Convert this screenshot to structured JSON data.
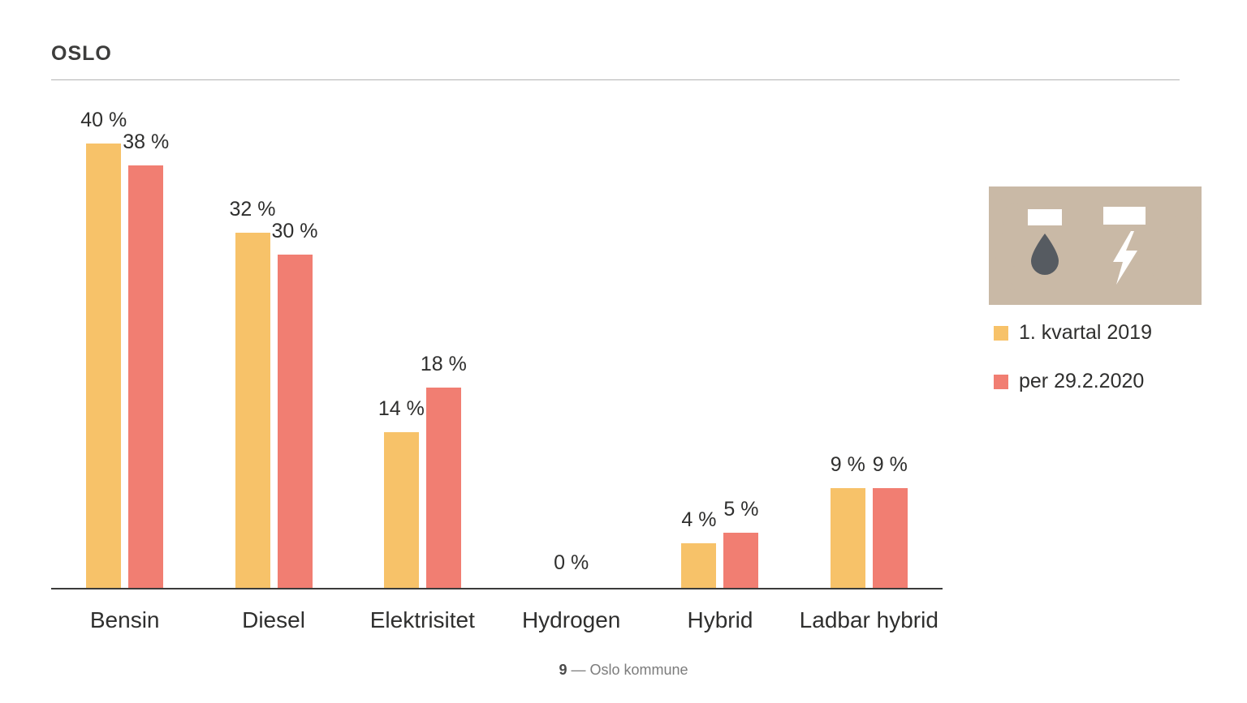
{
  "title": "OSLO",
  "legend": [
    {
      "label": "1. kvartal 2019",
      "color": "#F7C269"
    },
    {
      "label": "per 29.2.2020",
      "color": "#F17E72"
    }
  ],
  "icons": {
    "left": "fuel-pump-oil-icon",
    "right": "ev-charger-plug-icon",
    "color": "#C9B9A6",
    "drop_color": "#565B61"
  },
  "footer": {
    "page_number": "9",
    "separator": "—",
    "source": "Oslo kommune"
  },
  "chart_data": {
    "type": "bar",
    "title": "OSLO",
    "categories": [
      "Bensin",
      "Diesel",
      "Elektrisitet",
      "Hydrogen",
      "Hybrid",
      "Ladbar hybrid"
    ],
    "series": [
      {
        "name": "1. kvartal 2019",
        "color": "#F7C269",
        "values": [
          40,
          32,
          14,
          0,
          4,
          9
        ],
        "labels": [
          "40 %",
          "32 %",
          "14 %",
          "0 %",
          "4 %",
          "9 %"
        ]
      },
      {
        "name": "per 29.2.2020",
        "color": "#F17E72",
        "values": [
          38,
          30,
          18,
          0,
          5,
          9
        ],
        "labels": [
          "38 %",
          "30 %",
          "18 %",
          "",
          "5 %",
          "9 %"
        ]
      }
    ],
    "unit": "%",
    "xlabel": "",
    "ylabel": "",
    "ylim": [
      0,
      42
    ],
    "grid": false,
    "value_labels": true,
    "legend_position": "right"
  }
}
